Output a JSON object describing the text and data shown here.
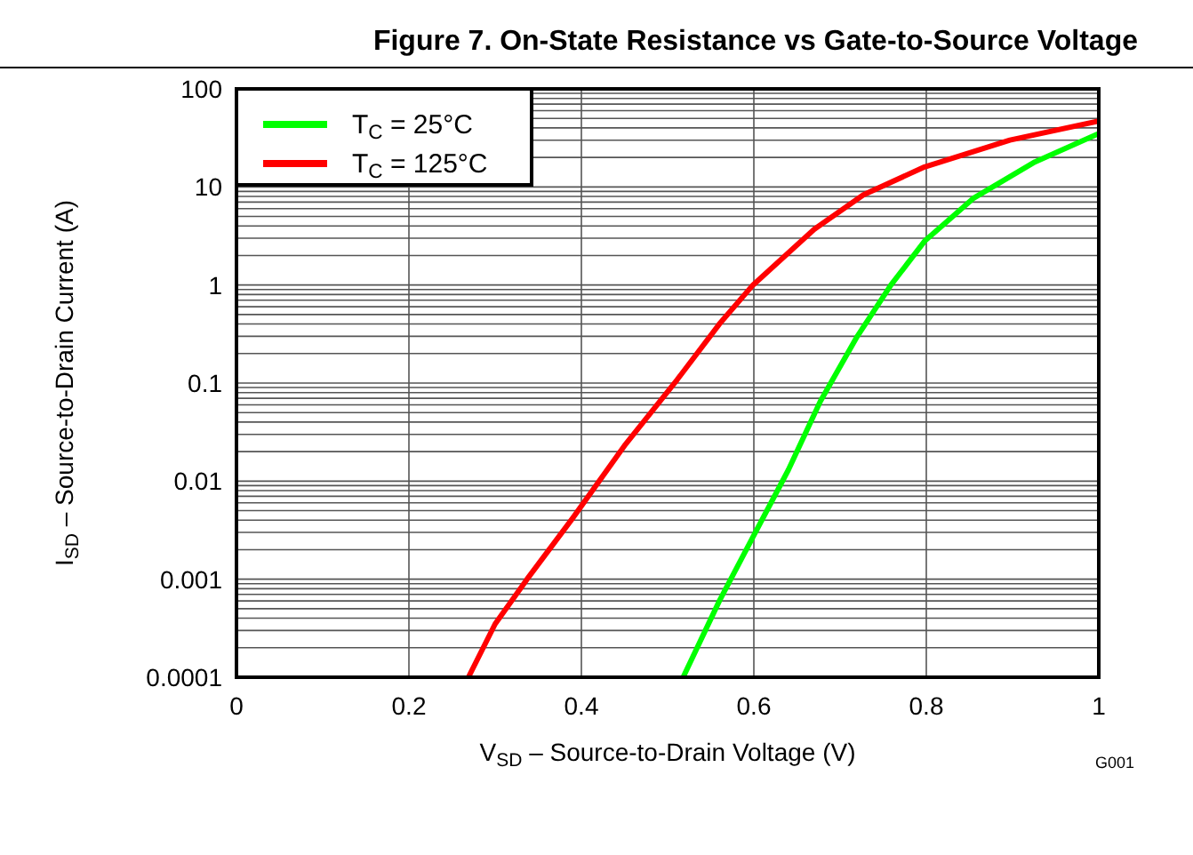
{
  "chart_data": {
    "type": "line",
    "title": "Figure 7. On-State Resistance vs Gate-to-Source Voltage",
    "xlabel": "V$_{SD}$ – Source-to-Drain Voltage (V)",
    "ylabel": "I$_{SD}$ – Source-to-Drain Current (A)",
    "annotations": [
      "G001"
    ],
    "series": [
      {
        "name": "T$_{C}$ = 25°C",
        "color": "#00ff00",
        "x": [
          0.518,
          0.56,
          0.599,
          0.64,
          0.677,
          0.72,
          0.759,
          0.798,
          0.855,
          0.926,
          1
        ],
        "values": [
          0.0001,
          0.0006,
          0.0027,
          0.013,
          0.065,
          0.3,
          1.0,
          2.8,
          7.7,
          18,
          35
        ]
      },
      {
        "name": "T$_{C}$ = 125°C",
        "color": "#ff0000",
        "x": [
          0.269,
          0.3,
          0.337,
          0.39,
          0.45,
          0.511,
          0.56,
          0.599,
          0.67,
          0.727,
          0.798,
          0.897,
          1
        ],
        "values": [
          0.0001,
          0.00035,
          0.001,
          0.0042,
          0.023,
          0.108,
          0.4,
          1.0,
          3.7,
          8.3,
          16,
          30,
          47
        ]
      }
    ],
    "xlim": [
      0,
      1
    ],
    "xticks": [
      0,
      0.2,
      0.4,
      0.6,
      0.8,
      1
    ],
    "ylim": [
      0.0001,
      100
    ],
    "yticks": [
      0.0001,
      {
        "value": 0.0002,
        "label": null
      },
      {
        "value": 0.0003,
        "label": null
      },
      {
        "value": 0.0004,
        "label": null
      },
      {
        "value": 0.0005,
        "label": null
      },
      {
        "value": 0.0006,
        "label": null
      },
      {
        "value": 0.0007,
        "label": null
      },
      {
        "value": 0.0008,
        "label": null
      },
      {
        "value": 0.0009,
        "label": null
      },
      0.001,
      {
        "value": 0.002,
        "label": null
      },
      {
        "value": 0.003,
        "label": null
      },
      {
        "value": 0.004,
        "label": null
      },
      {
        "value": 0.005,
        "label": null
      },
      {
        "value": 0.006,
        "label": null
      },
      {
        "value": 0.007,
        "label": null
      },
      {
        "value": 0.008,
        "label": null
      },
      {
        "value": 0.009,
        "label": null
      },
      0.01,
      {
        "value": 0.02,
        "label": null
      },
      {
        "value": 0.03,
        "label": null
      },
      {
        "value": 0.04,
        "label": null
      },
      {
        "value": 0.05,
        "label": null
      },
      {
        "value": 0.06,
        "label": null
      },
      {
        "value": 0.07,
        "label": null
      },
      {
        "value": 0.08,
        "label": null
      },
      {
        "value": 0.09,
        "label": null
      },
      0.1,
      {
        "value": 0.2,
        "label": null
      },
      {
        "value": 0.3,
        "label": null
      },
      {
        "value": 0.4,
        "label": null
      },
      {
        "value": 0.5,
        "label": null
      },
      {
        "value": 0.6,
        "label": null
      },
      {
        "value": 0.7,
        "label": null
      },
      {
        "value": 0.8,
        "label": null
      },
      {
        "value": 0.9,
        "label": null
      },
      1,
      {
        "value": 2,
        "label": null
      },
      {
        "value": 3,
        "label": null
      },
      {
        "value": 4,
        "label": null
      },
      {
        "value": 5,
        "label": null
      },
      {
        "value": 6,
        "label": null
      },
      {
        "value": 7,
        "label": null
      },
      {
        "value": 8,
        "label": null
      },
      {
        "value": 9,
        "label": null
      },
      10,
      {
        "value": 20,
        "label": null
      },
      {
        "value": 30,
        "label": null
      },
      {
        "value": 40,
        "label": null
      },
      {
        "value": 50,
        "label": null
      },
      {
        "value": 60,
        "label": null
      },
      {
        "value": 70,
        "label": null
      },
      {
        "value": 80,
        "label": null
      },
      {
        "value": 90,
        "label": null
      },
      100
    ],
    "log": true,
    "grid": true,
    "legend": "top left",
    "line_style": "solid",
    "marker": "none"
  }
}
